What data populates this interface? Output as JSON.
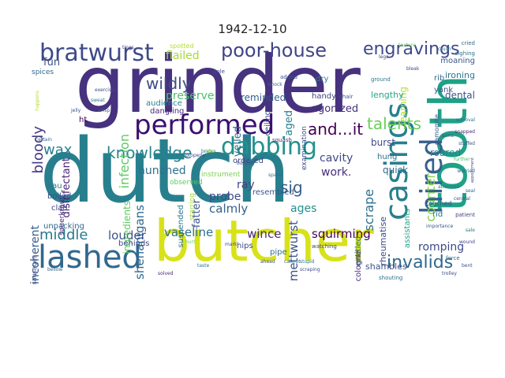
{
  "chart_data": {
    "type": "wordcloud",
    "title": "1942-12-10",
    "palette": [
      "#440154",
      "#46327e",
      "#365c8d",
      "#277f8e",
      "#1fa187",
      "#4ac16d",
      "#a0da39",
      "#fde725"
    ],
    "words": [
      {
        "text": "dutch",
        "weight": 100,
        "color": "#277f8e"
      },
      {
        "text": "grinder",
        "weight": 92,
        "color": "#46327e"
      },
      {
        "text": "butcher",
        "weight": 66,
        "color": "#d8e219"
      },
      {
        "text": "tooth",
        "weight": 60,
        "color": "#1fa187"
      },
      {
        "text": "lashed",
        "weight": 38,
        "color": "#31688e"
      },
      {
        "text": "casings",
        "weight": 36,
        "color": "#277f8e"
      },
      {
        "text": "hired",
        "weight": 34,
        "color": "#35608d"
      },
      {
        "text": "performed",
        "weight": 32,
        "color": "#3b0f70"
      },
      {
        "text": "bratwurst",
        "weight": 28,
        "color": "#3e4989"
      },
      {
        "text": "dabbing",
        "weight": 28,
        "color": "#21918c"
      },
      {
        "text": "poor-house",
        "weight": 22,
        "color": "#414487"
      },
      {
        "text": "engravings",
        "weight": 20,
        "color": "#3e4a89"
      },
      {
        "text": "invalids",
        "weight": 20,
        "color": "#31688e"
      },
      {
        "text": "and...it",
        "weight": 18,
        "color": "#440154"
      },
      {
        "text": "talents",
        "weight": 18,
        "color": "#6ccd5a"
      },
      {
        "text": "knowledge",
        "weight": 18,
        "color": "#25858e"
      },
      {
        "text": "wildly",
        "weight": 18,
        "color": "#3e4a89"
      },
      {
        "text": "sig",
        "weight": 18,
        "color": "#355f8d"
      },
      {
        "text": "middle",
        "weight": 16,
        "color": "#2a788e"
      },
      {
        "text": "bloody",
        "weight": 16,
        "color": "#443983"
      },
      {
        "text": "wax",
        "weight": 16,
        "color": "#277f8e"
      },
      {
        "text": "infection",
        "weight": 14,
        "color": "#5ec962"
      },
      {
        "text": "counter",
        "weight": 14,
        "color": "#84d44b"
      },
      {
        "text": "scrape",
        "weight": 14,
        "color": "#2c728e"
      },
      {
        "text": "shenanigans",
        "weight": 13,
        "color": "#31688e"
      },
      {
        "text": "mettwurst",
        "weight": 13,
        "color": "#3b528b"
      },
      {
        "text": "squirming",
        "weight": 13,
        "color": "#440154"
      },
      {
        "text": "louder",
        "weight": 13,
        "color": "#3b528b"
      },
      {
        "text": "vaseline",
        "weight": 13,
        "color": "#2d708e"
      },
      {
        "text": "wince",
        "weight": 13,
        "color": "#482878"
      },
      {
        "text": "calmly",
        "weight": 13,
        "color": "#33638d"
      },
      {
        "text": "probe",
        "weight": 13,
        "color": "#3e4a89"
      },
      {
        "text": "hunched",
        "weight": 12,
        "color": "#2d708e"
      },
      {
        "text": "ray",
        "weight": 12,
        "color": "#414487"
      },
      {
        "text": "ages",
        "weight": 12,
        "color": "#21918c"
      },
      {
        "text": "romping",
        "weight": 12,
        "color": "#3e4989"
      },
      {
        "text": "incoherent",
        "weight": 12,
        "color": "#365c8d"
      },
      {
        "text": "disinfectant",
        "weight": 12,
        "color": "#482475"
      },
      {
        "text": "preserve",
        "weight": 12,
        "color": "#4ac16d"
      },
      {
        "text": "flailed",
        "weight": 12,
        "color": "#a5db36"
      },
      {
        "text": "cavity",
        "weight": 12,
        "color": "#3e4a89"
      },
      {
        "text": "work.",
        "weight": 12,
        "color": "#472d7b"
      },
      {
        "text": "fatter",
        "weight": 11,
        "color": "#3b528b"
      },
      {
        "text": "agonized",
        "weight": 11,
        "color": "#46307e"
      },
      {
        "text": "yelled",
        "weight": 11,
        "color": "#2e6e8e"
      },
      {
        "text": "aged",
        "weight": 11,
        "color": "#277f8e"
      },
      {
        "text": "fun",
        "weight": 11,
        "color": "#3b528b"
      },
      {
        "text": "ingredients",
        "weight": 10,
        "color": "#5ec962"
      },
      {
        "text": "reminded",
        "weight": 10,
        "color": "#365c8d"
      },
      {
        "text": "learning",
        "weight": 10,
        "color": "#b5de2b"
      },
      {
        "text": "lengthy",
        "weight": 10,
        "color": "#22a785"
      },
      {
        "text": "burst",
        "weight": 10,
        "color": "#3e4a89"
      },
      {
        "text": "roared",
        "weight": 10,
        "color": "#277f8e"
      },
      {
        "text": "quick",
        "weight": 10,
        "color": "#31688e"
      },
      {
        "text": "dental",
        "weight": 10,
        "color": "#3b528b"
      },
      {
        "text": "ironing",
        "weight": 9,
        "color": "#2a788e"
      },
      {
        "text": "moaning",
        "weight": 9,
        "color": "#38598c"
      },
      {
        "text": "rheumatise",
        "weight": 9,
        "color": "#3e4a89"
      },
      {
        "text": "assistants",
        "weight": 9,
        "color": "#20a386"
      },
      {
        "text": "shambles",
        "weight": 9,
        "color": "#3b528b"
      },
      {
        "text": "entitled",
        "weight": 9,
        "color": "#2c728e"
      },
      {
        "text": "cologne",
        "weight": 8,
        "color": "#472d7b"
      },
      {
        "text": "ordered",
        "weight": 8,
        "color": "#3e4a89"
      },
      {
        "text": "resembled",
        "weight": 8,
        "color": "#39568c"
      },
      {
        "text": "suspended",
        "weight": 8,
        "color": "#2a788e"
      },
      {
        "text": "dangling",
        "weight": 8,
        "color": "#482878"
      },
      {
        "text": "audience",
        "weight": 8,
        "color": "#25848e"
      },
      {
        "text": "handy",
        "weight": 8,
        "color": "#414487"
      },
      {
        "text": "ceiling",
        "weight": 8,
        "color": "#3e4989"
      },
      {
        "text": "dry",
        "weight": 8,
        "color": "#26828e"
      },
      {
        "text": "hung",
        "weight": 8,
        "color": "#2d708e"
      },
      {
        "text": "examination",
        "weight": 7,
        "color": "#3e4a89"
      },
      {
        "text": "rib",
        "weight": 8,
        "color": "#31688e"
      },
      {
        "text": "yank",
        "weight": 8,
        "color": "#3b528b"
      },
      {
        "text": "pipe",
        "weight": 8,
        "color": "#2d708e"
      },
      {
        "text": "hips",
        "weight": 8,
        "color": "#3e4a89"
      },
      {
        "text": "instrument",
        "weight": 7,
        "color": "#7ad151"
      },
      {
        "text": "observed",
        "weight": 7,
        "color": "#5ec962"
      },
      {
        "text": "starring",
        "weight": 7,
        "color": "#a0da39"
      },
      {
        "text": "sauerkraut",
        "weight": 7,
        "color": "#482878"
      },
      {
        "text": "boiled",
        "weight": 8,
        "color": "#3b528b"
      },
      {
        "text": "eau",
        "weight": 8,
        "color": "#2a788e"
      },
      {
        "text": "clad",
        "weight": 8,
        "color": "#414487"
      },
      {
        "text": "unpacking",
        "weight": 8,
        "color": "#31688e"
      },
      {
        "text": "behinds",
        "weight": 8,
        "color": "#3e4a89"
      },
      {
        "text": "spices",
        "weight": 7,
        "color": "#31688e"
      },
      {
        "text": "ht",
        "weight": 8,
        "color": "#440154"
      },
      {
        "text": "sausages",
        "weight": 6,
        "color": "#3e4a89"
      },
      {
        "text": "touched",
        "weight": 6,
        "color": "#3b528b"
      },
      {
        "text": "rid",
        "weight": 8,
        "color": "#2d708e"
      },
      {
        "text": "camomile",
        "weight": 6,
        "color": "#38598c"
      },
      {
        "text": "spotted",
        "weight": 6,
        "color": "#b5de2b"
      },
      {
        "text": "pole",
        "weight": 5,
        "color": "#3e4a89"
      },
      {
        "text": "added",
        "weight": 5,
        "color": "#3b528b"
      },
      {
        "text": "cried",
        "weight": 5,
        "color": "#31688e"
      },
      {
        "text": "sighing",
        "weight": 5,
        "color": "#2d708e"
      },
      {
        "text": "ground",
        "weight": 5,
        "color": "#2a788e"
      },
      {
        "text": "texture",
        "weight": 5,
        "color": "#6ccd5a"
      },
      {
        "text": "patient",
        "weight": 5,
        "color": "#414487"
      },
      {
        "text": "chair",
        "weight": 5,
        "color": "#3b528b"
      },
      {
        "text": "squash",
        "weight": 5,
        "color": "#482878"
      },
      {
        "text": "watching",
        "weight": 5,
        "color": "#3e4a89"
      },
      {
        "text": "shouting",
        "weight": 5,
        "color": "#2d708e"
      },
      {
        "text": "force",
        "weight": 5,
        "color": "#31688e"
      },
      {
        "text": "importance",
        "weight": 5,
        "color": "#39568c"
      },
      {
        "text": "properly",
        "weight": 5,
        "color": "#3e4a89"
      },
      {
        "text": "brides",
        "weight": 5,
        "color": "#2a788e"
      },
      {
        "text": "central",
        "weight": 5,
        "color": "#3b528b"
      },
      {
        "text": "further",
        "weight": 5,
        "color": "#4ac16d"
      },
      {
        "text": "worried",
        "weight": 5,
        "color": "#31688e"
      },
      {
        "text": "appointment",
        "weight": 4,
        "color": "#3e4a89"
      },
      {
        "text": "removal",
        "weight": 5,
        "color": "#2d708e"
      },
      {
        "text": "snapped",
        "weight": 5,
        "color": "#482878"
      },
      {
        "text": "stuffed",
        "weight": 5,
        "color": "#3b528b"
      },
      {
        "text": "certain",
        "weight": 5,
        "color": "#31688e"
      },
      {
        "text": "happens",
        "weight": 4,
        "color": "#b5de2b"
      },
      {
        "text": "sweat",
        "weight": 5,
        "color": "#2a788e"
      },
      {
        "text": "exercises",
        "weight": 5,
        "color": "#3e4a89"
      },
      {
        "text": "tings",
        "weight": 5,
        "color": "#414487"
      },
      {
        "text": "bulging",
        "weight": 5,
        "color": "#3b528b"
      },
      {
        "text": "attention",
        "weight": 5,
        "color": "#2d708e"
      },
      {
        "text": "cannot",
        "weight": 5,
        "color": "#31688e"
      },
      {
        "text": "scraping",
        "weight": 5,
        "color": "#3e4a89"
      },
      {
        "text": "taste",
        "weight": 5,
        "color": "#2a788e"
      },
      {
        "text": "hurt",
        "weight": 5,
        "color": "#6ccd5a"
      },
      {
        "text": "arms",
        "weight": 5,
        "color": "#3b528b"
      },
      {
        "text": "seal",
        "weight": 5,
        "color": "#31688e"
      },
      {
        "text": "bleak",
        "weight": 5,
        "color": "#3e4a89"
      },
      {
        "text": "crush",
        "weight": 5,
        "color": "#2d708e"
      },
      {
        "text": "legs",
        "weight": 5,
        "color": "#414487"
      },
      {
        "text": "ahead",
        "weight": 5,
        "color": "#3b528b"
      },
      {
        "text": "stupid",
        "weight": 5,
        "color": "#2a788e"
      },
      {
        "text": "space",
        "weight": 5,
        "color": "#31688e"
      },
      {
        "text": "mark",
        "weight": 5,
        "color": "#3e4a89"
      },
      {
        "text": "solved",
        "weight": 5,
        "color": "#482878"
      },
      {
        "text": "nice",
        "weight": 5,
        "color": "#a0da39"
      },
      {
        "text": "crisp",
        "weight": 5,
        "color": "#2d708e"
      },
      {
        "text": "jelly",
        "weight": 5,
        "color": "#3b528b"
      },
      {
        "text": "knock",
        "weight": 5,
        "color": "#31688e"
      },
      {
        "text": "trolley",
        "weight": 5,
        "color": "#3e4a89"
      },
      {
        "text": "sale",
        "weight": 5,
        "color": "#2a788e"
      },
      {
        "text": "wound",
        "weight": 5,
        "color": "#414487"
      },
      {
        "text": "bent",
        "weight": 5,
        "color": "#3b528b"
      },
      {
        "text": "bellow",
        "weight": 5,
        "color": "#31688e"
      }
    ]
  }
}
